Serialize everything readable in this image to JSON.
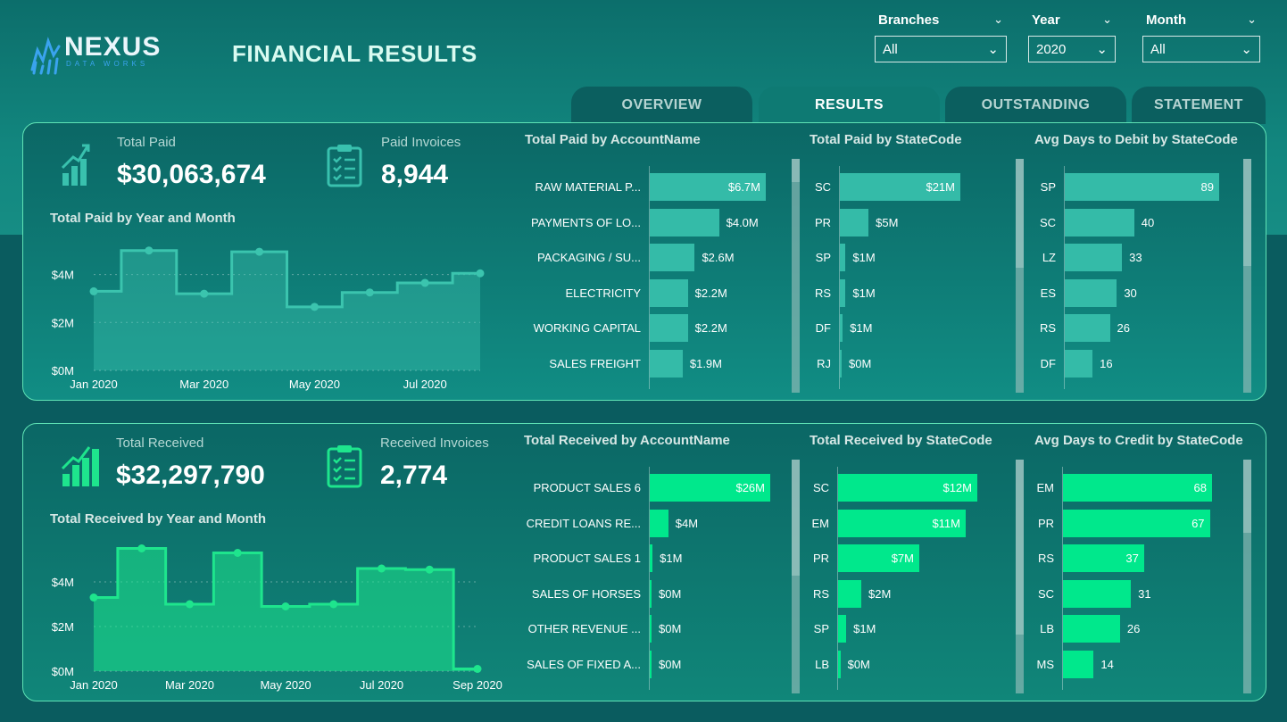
{
  "app": {
    "logo_name": "NEXUS",
    "logo_sub": "DATA WORKS",
    "title": "FINANCIAL RESULTS"
  },
  "slicers": [
    {
      "label": "Branches",
      "value": "All"
    },
    {
      "label": "Year",
      "value": "2020"
    },
    {
      "label": "Month",
      "value": "All"
    }
  ],
  "tabs": [
    "OVERVIEW",
    "RESULTS",
    "OUTSTANDING",
    "STATEMENT"
  ],
  "active_tab": "RESULTS",
  "colors": {
    "paid_bar": "#34bba8",
    "received_bar": "#00e88c",
    "paid_line": "#3bc4ae",
    "received_line": "#1ee58d"
  },
  "paid": {
    "total_label": "Total Paid",
    "total_value": "$30,063,674",
    "invoices_label": "Paid Invoices",
    "invoices_value": "8,944",
    "chart_title": "Total Paid by Year and Month",
    "by_account": {
      "title": "Total Paid by AccountName",
      "rows": [
        {
          "label": "RAW MATERIAL P...",
          "display": "$6.7M",
          "value": 6.7
        },
        {
          "label": "PAYMENTS OF LO...",
          "display": "$4.0M",
          "value": 4.0
        },
        {
          "label": "PACKAGING / SU...",
          "display": "$2.6M",
          "value": 2.6
        },
        {
          "label": "ELECTRICITY",
          "display": "$2.2M",
          "value": 2.2
        },
        {
          "label": "WORKING CAPITAL",
          "display": "$2.2M",
          "value": 2.2
        },
        {
          "label": "SALES FREIGHT",
          "display": "$1.9M",
          "value": 1.9
        }
      ]
    },
    "by_state": {
      "title": "Total Paid by StateCode",
      "rows": [
        {
          "label": "SC",
          "display": "$21M",
          "value": 21
        },
        {
          "label": "PR",
          "display": "$5M",
          "value": 5
        },
        {
          "label": "SP",
          "display": "$1M",
          "value": 1
        },
        {
          "label": "RS",
          "display": "$1M",
          "value": 1
        },
        {
          "label": "DF",
          "display": "$1M",
          "value": 0.5
        },
        {
          "label": "RJ",
          "display": "$0M",
          "value": 0.15
        }
      ]
    },
    "avg_days": {
      "title": "Avg Days to Debit by StateCode",
      "rows": [
        {
          "label": "SP",
          "display": "89",
          "value": 89
        },
        {
          "label": "SC",
          "display": "40",
          "value": 40
        },
        {
          "label": "LZ",
          "display": "33",
          "value": 33
        },
        {
          "label": "ES",
          "display": "30",
          "value": 30
        },
        {
          "label": "RS",
          "display": "26",
          "value": 26
        },
        {
          "label": "DF",
          "display": "16",
          "value": 16
        }
      ]
    }
  },
  "received": {
    "total_label": "Total Received",
    "total_value": "$32,297,790",
    "invoices_label": "Received Invoices",
    "invoices_value": "2,774",
    "chart_title": "Total Received by Year and Month",
    "by_account": {
      "title": "Total Received by AccountName",
      "rows": [
        {
          "label": "PRODUCT SALES 6",
          "display": "$26M",
          "value": 26
        },
        {
          "label": "CREDIT LOANS RE...",
          "display": "$4M",
          "value": 4
        },
        {
          "label": "PRODUCT SALES 1",
          "display": "$1M",
          "value": 0.6
        },
        {
          "label": "SALES OF HORSES",
          "display": "$0M",
          "value": 0.15
        },
        {
          "label": "OTHER REVENUE ...",
          "display": "$0M",
          "value": 0.15
        },
        {
          "label": "SALES OF FIXED A...",
          "display": "$0M",
          "value": 0.15
        }
      ]
    },
    "by_state": {
      "title": "Total Received by StateCode",
      "rows": [
        {
          "label": "SC",
          "display": "$12M",
          "value": 12
        },
        {
          "label": "EM",
          "display": "$11M",
          "value": 11
        },
        {
          "label": "PR",
          "display": "$7M",
          "value": 7
        },
        {
          "label": "RS",
          "display": "$2M",
          "value": 2
        },
        {
          "label": "SP",
          "display": "$1M",
          "value": 0.7
        },
        {
          "label": "LB",
          "display": "$0M",
          "value": 0.2
        }
      ]
    },
    "avg_days": {
      "title": "Avg Days to Credit by StateCode",
      "rows": [
        {
          "label": "EM",
          "display": "68",
          "value": 68
        },
        {
          "label": "PR",
          "display": "67",
          "value": 67
        },
        {
          "label": "RS",
          "display": "37",
          "value": 37
        },
        {
          "label": "SC",
          "display": "31",
          "value": 31
        },
        {
          "label": "LB",
          "display": "26",
          "value": 26
        },
        {
          "label": "MS",
          "display": "14",
          "value": 14
        }
      ]
    }
  },
  "chart_data": [
    {
      "type": "area",
      "title": "Total Paid by Year and Month",
      "x": [
        "Jan 2020",
        "Feb 2020",
        "Mar 2020",
        "Apr 2020",
        "May 2020",
        "Jun 2020",
        "Jul 2020",
        "Aug 2020"
      ],
      "values": [
        3.3,
        5.0,
        3.2,
        4.95,
        2.65,
        3.25,
        3.65,
        4.05
      ],
      "xticks": [
        "Jan 2020",
        "Mar 2020",
        "May 2020",
        "Jul 2020"
      ],
      "yticks": [
        "$0M",
        "$2M",
        "$4M"
      ],
      "ylim": [
        0,
        5.4
      ],
      "step": true
    },
    {
      "type": "area",
      "title": "Total Received by Year and Month",
      "x": [
        "Jan 2020",
        "Feb 2020",
        "Mar 2020",
        "Apr 2020",
        "May 2020",
        "Jun 2020",
        "Jul 2020",
        "Aug 2020",
        "Sep 2020"
      ],
      "values": [
        3.3,
        5.5,
        3.0,
        5.3,
        2.9,
        3.0,
        4.6,
        4.55,
        0.1
      ],
      "xticks": [
        "Jan 2020",
        "Mar 2020",
        "May 2020",
        "Jul 2020",
        "Sep 2020"
      ],
      "yticks": [
        "$0M",
        "$2M",
        "$4M"
      ],
      "ylim": [
        0,
        5.8
      ],
      "step": true
    }
  ]
}
